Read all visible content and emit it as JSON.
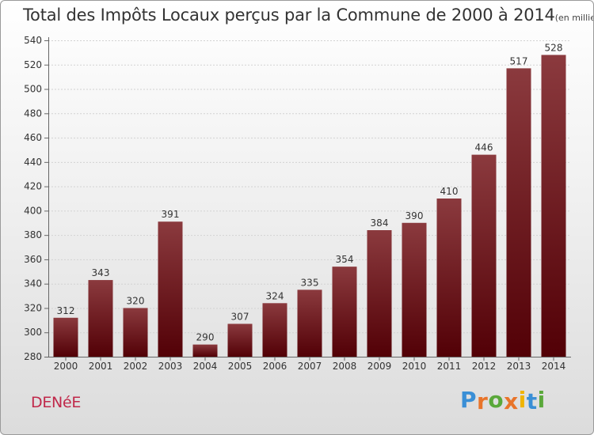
{
  "title": "Total des Impôts Locaux perçus par la Commune de 2000 à 2014",
  "title_unit": "(en milliers d'€)",
  "commune": "DENéE",
  "logo": {
    "text": "Proxiti",
    "letters": [
      "P",
      "r",
      "o",
      "x",
      "i",
      "t",
      "i"
    ],
    "colors": [
      "#3a8fd6",
      "#e8742a",
      "#5aa83a",
      "#e8742a",
      "#f0b400",
      "#3a8fd6",
      "#5aa83a"
    ]
  },
  "colors": {
    "bar_top": "#8b3a3e",
    "bar_bottom": "#520006",
    "commune": "#c0284a"
  },
  "chart_data": {
    "type": "bar",
    "title": "Total des Impôts Locaux perçus par la Commune de 2000 à 2014",
    "xlabel": "",
    "ylabel": "(en milliers d'€)",
    "categories": [
      "2000",
      "2001",
      "2002",
      "2003",
      "2004",
      "2005",
      "2006",
      "2007",
      "2008",
      "2009",
      "2010",
      "2011",
      "2012",
      "2013",
      "2014"
    ],
    "values": [
      312,
      343,
      320,
      391,
      290,
      307,
      324,
      335,
      354,
      384,
      390,
      410,
      446,
      517,
      528
    ],
    "ylim": [
      280,
      540
    ],
    "yticks": [
      280,
      300,
      320,
      340,
      360,
      380,
      400,
      420,
      440,
      460,
      480,
      500,
      520,
      540
    ],
    "grid": true
  }
}
